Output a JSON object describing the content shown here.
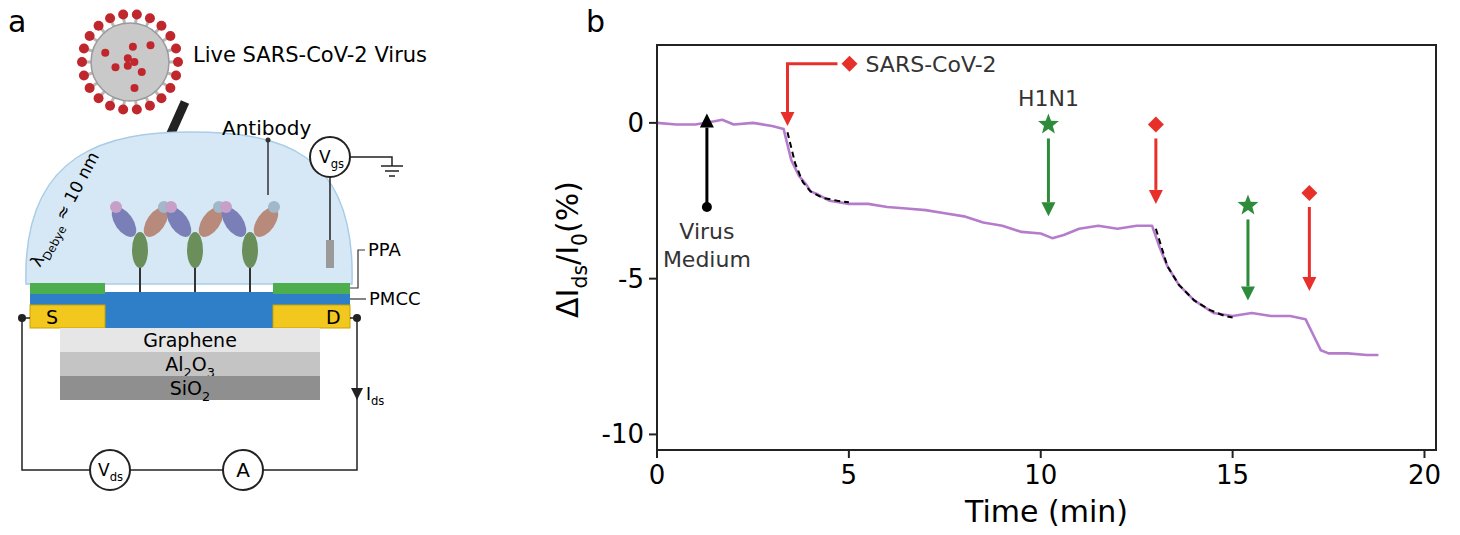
{
  "diagram": {
    "panel_label": "a",
    "virus_label": "Live SARS-CoV-2 Virus",
    "antibody_label": "Antibody",
    "debye_label": [
      {
        "text": "λ"
      },
      {
        "text": "Debye",
        "sub": true
      },
      {
        "text": " ≈ 10 nm"
      }
    ],
    "gate_label": [
      {
        "text": "V"
      },
      {
        "text": "gs",
        "sub": true
      }
    ],
    "ppa_label": "PPA",
    "pmcc_label": "PMCC",
    "source_label": "S",
    "drain_label": "D",
    "layers": [
      [
        {
          "text": "Graphene"
        }
      ],
      [
        {
          "text": "Al"
        },
        {
          "text": "2",
          "sub": true
        },
        {
          "text": "O"
        },
        {
          "text": "3",
          "sub": true
        }
      ],
      [
        {
          "text": "SiO"
        },
        {
          "text": "2",
          "sub": true
        }
      ]
    ],
    "current_label": [
      {
        "text": "I"
      },
      {
        "text": "ds",
        "sub": true
      }
    ],
    "drain_voltage_label": [
      {
        "text": "V"
      },
      {
        "text": "ds",
        "sub": true
      }
    ],
    "ammeter_label": "A"
  },
  "chart_data": {
    "type": "line",
    "panel_label": "b",
    "x_label": "Time (min)",
    "y_label": [
      {
        "text": "ΔI"
      },
      {
        "text": "ds",
        "sub": true
      },
      {
        "text": "/I"
      },
      {
        "text": "0",
        "sub": true
      },
      {
        "text": "(%)"
      }
    ],
    "xlim": [
      0,
      20.3
    ],
    "xticks": [
      0,
      5,
      10,
      15,
      20
    ],
    "ylim": [
      -10.5,
      2.5
    ],
    "yticks": [
      -10,
      -5,
      0
    ],
    "grid": false,
    "series": [
      {
        "color": "#b57ccc",
        "line_style": "solid",
        "x": [
          0,
          0.5,
          1,
          1.5,
          1.7,
          2,
          2.5,
          3,
          3.3,
          3.5,
          3.7,
          3.9,
          4.0,
          4.2,
          4.5,
          5,
          5.5,
          6,
          6.5,
          7,
          7.5,
          8,
          8.5,
          9,
          9.5,
          10,
          10.3,
          10.6,
          11,
          11.5,
          12,
          12.5,
          12.9,
          13.1,
          13.3,
          13.6,
          14,
          14.5,
          15,
          15.5,
          16,
          16.5,
          16.9,
          17.1,
          17.3,
          17.5,
          18,
          18.5,
          18.8
        ],
        "values": [
          0,
          -0.05,
          -0.05,
          0.05,
          0.1,
          -0.05,
          0,
          -0.1,
          -0.2,
          -1.2,
          -1.7,
          -2.0,
          -2.2,
          -2.3,
          -2.5,
          -2.6,
          -2.6,
          -2.7,
          -2.75,
          -2.8,
          -2.9,
          -3.0,
          -3.2,
          -3.3,
          -3.5,
          -3.55,
          -3.7,
          -3.6,
          -3.4,
          -3.3,
          -3.4,
          -3.3,
          -3.3,
          -4.0,
          -4.6,
          -5.2,
          -5.7,
          -6.1,
          -6.2,
          -6.1,
          -6.2,
          -6.2,
          -6.3,
          -6.8,
          -7.3,
          -7.4,
          -7.4,
          -7.45,
          -7.45
        ]
      },
      {
        "color": "#000000",
        "line_style": "dashed",
        "x": [
          3.4,
          3.6,
          3.8,
          4.0,
          4.3,
          4.7,
          5.0
        ],
        "values": [
          -0.3,
          -1.3,
          -1.9,
          -2.2,
          -2.4,
          -2.5,
          -2.55
        ]
      },
      {
        "color": "#000000",
        "line_style": "dashed",
        "x": [
          13.0,
          13.3,
          13.6,
          14.0,
          14.4,
          14.8,
          15.0
        ],
        "values": [
          -3.4,
          -4.6,
          -5.2,
          -5.7,
          -6.0,
          -6.2,
          -6.25
        ]
      }
    ],
    "annotations": [
      {
        "x": 1.3,
        "y_start": -2.7,
        "y_end": 0.3,
        "marker": "dot",
        "color": "#000000",
        "label": "Virus Medium",
        "label_position": "below"
      },
      {
        "x": 3.4,
        "y_start": 1.9,
        "y_end": -0.1,
        "marker": "diamond",
        "color": "#e8302a",
        "label": "SARS-CoV-2",
        "label_position": "right"
      },
      {
        "x": 10.2,
        "y_start": -0.5,
        "y_end": -3.0,
        "marker": "star",
        "color": "#2e8b3a",
        "label": "H1N1",
        "label_position": "above"
      },
      {
        "x": 13.0,
        "y_start": -0.5,
        "y_end": -2.6,
        "marker": "diamond",
        "color": "#e8302a"
      },
      {
        "x": 15.4,
        "y_start": -3.1,
        "y_end": -5.7,
        "marker": "star",
        "color": "#2e8b3a"
      },
      {
        "x": 17.0,
        "y_start": -2.7,
        "y_end": -5.4,
        "marker": "diamond",
        "color": "#e8302a"
      }
    ]
  }
}
